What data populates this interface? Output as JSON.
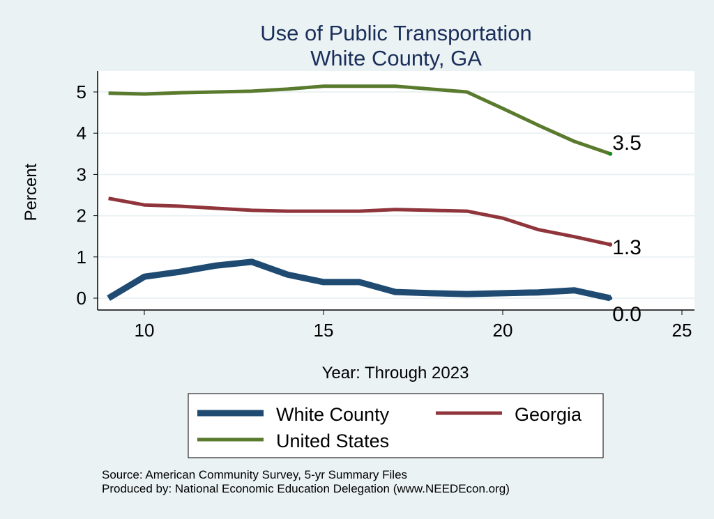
{
  "chart_data": {
    "type": "line",
    "title": "Use of Public Transportation",
    "subtitle": "White County, GA",
    "xlabel": "Year: Through 2023",
    "ylabel": "Percent",
    "xlim": [
      9,
      25.5
    ],
    "ylim": [
      -0.3,
      5.3
    ],
    "xticks": [
      10,
      15,
      20,
      25
    ],
    "yticks": [
      0,
      1,
      2,
      3,
      4,
      5
    ],
    "grid": true,
    "legend_position": "bottom",
    "x": [
      9,
      10,
      11,
      12,
      13,
      14,
      15,
      16,
      17,
      18,
      19,
      20,
      21,
      22,
      23
    ],
    "series": [
      {
        "name": "White County",
        "color": "#1f4a72",
        "width": 9,
        "values": [
          0.0,
          0.52,
          0.64,
          0.79,
          0.88,
          0.57,
          0.39,
          0.39,
          0.15,
          0.12,
          0.1,
          0.12,
          0.14,
          0.19,
          0.0
        ],
        "end_label": "0.0"
      },
      {
        "name": "Georgia",
        "color": "#8f353b",
        "width": 5,
        "values": [
          2.42,
          2.26,
          2.23,
          2.18,
          2.13,
          2.11,
          2.11,
          2.11,
          2.15,
          2.13,
          2.11,
          1.94,
          1.66,
          1.49,
          1.3
        ],
        "end_label": "1.3"
      },
      {
        "name": "United States",
        "color": "#5a7a2e",
        "width": 5,
        "values": [
          4.97,
          4.95,
          4.98,
          5.0,
          5.02,
          5.07,
          5.14,
          5.14,
          5.14,
          5.07,
          5.0,
          4.6,
          4.19,
          3.8,
          3.5
        ],
        "end_label": "3.5"
      }
    ]
  },
  "notes": {
    "source": "Source: American Community Survey, 5-yr Summary Files",
    "produced": "Produced by: National Economic Education Delegation (www.NEEDEcon.org)"
  }
}
